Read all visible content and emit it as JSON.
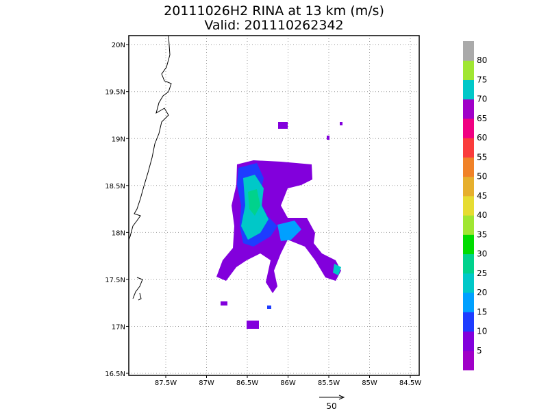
{
  "title": "20111026H2 RINA at 13 km (m/s)",
  "valid": "Valid: 201110262342",
  "lon_ticks": [
    {
      "value": -87.5,
      "label": "87.5W"
    },
    {
      "value": -87,
      "label": "87W"
    },
    {
      "value": -86.5,
      "label": "86.5W"
    },
    {
      "value": -86,
      "label": "86W"
    },
    {
      "value": -85.5,
      "label": "85.5W"
    },
    {
      "value": -85,
      "label": "85W"
    },
    {
      "value": -84.5,
      "label": "84.5W"
    }
  ],
  "lat_ticks": [
    {
      "value": 16.5,
      "label": "16.5N"
    },
    {
      "value": 17,
      "label": "17N"
    },
    {
      "value": 17.5,
      "label": "17.5N"
    },
    {
      "value": 18,
      "label": "18N"
    },
    {
      "value": 18.5,
      "label": "18.5N"
    },
    {
      "value": 19,
      "label": "19N"
    },
    {
      "value": 19.5,
      "label": "19.5N"
    },
    {
      "value": 20,
      "label": "20N"
    }
  ],
  "colorbar": {
    "labels": [
      5,
      10,
      15,
      20,
      25,
      30,
      35,
      40,
      45,
      50,
      55,
      60,
      65,
      70,
      75,
      80
    ],
    "colors": [
      "#a000c8",
      "#8200dc",
      "#1e3cff",
      "#00a0ff",
      "#00c8c8",
      "#00d28c",
      "#00dc00",
      "#a0e632",
      "#e6dc32",
      "#e6af2d",
      "#f08228",
      "#fa3c3c",
      "#f00082",
      "#a000c8",
      "#00c8c8",
      "#a0e632",
      "#aaaaaa"
    ]
  },
  "vector_reference": "50"
}
